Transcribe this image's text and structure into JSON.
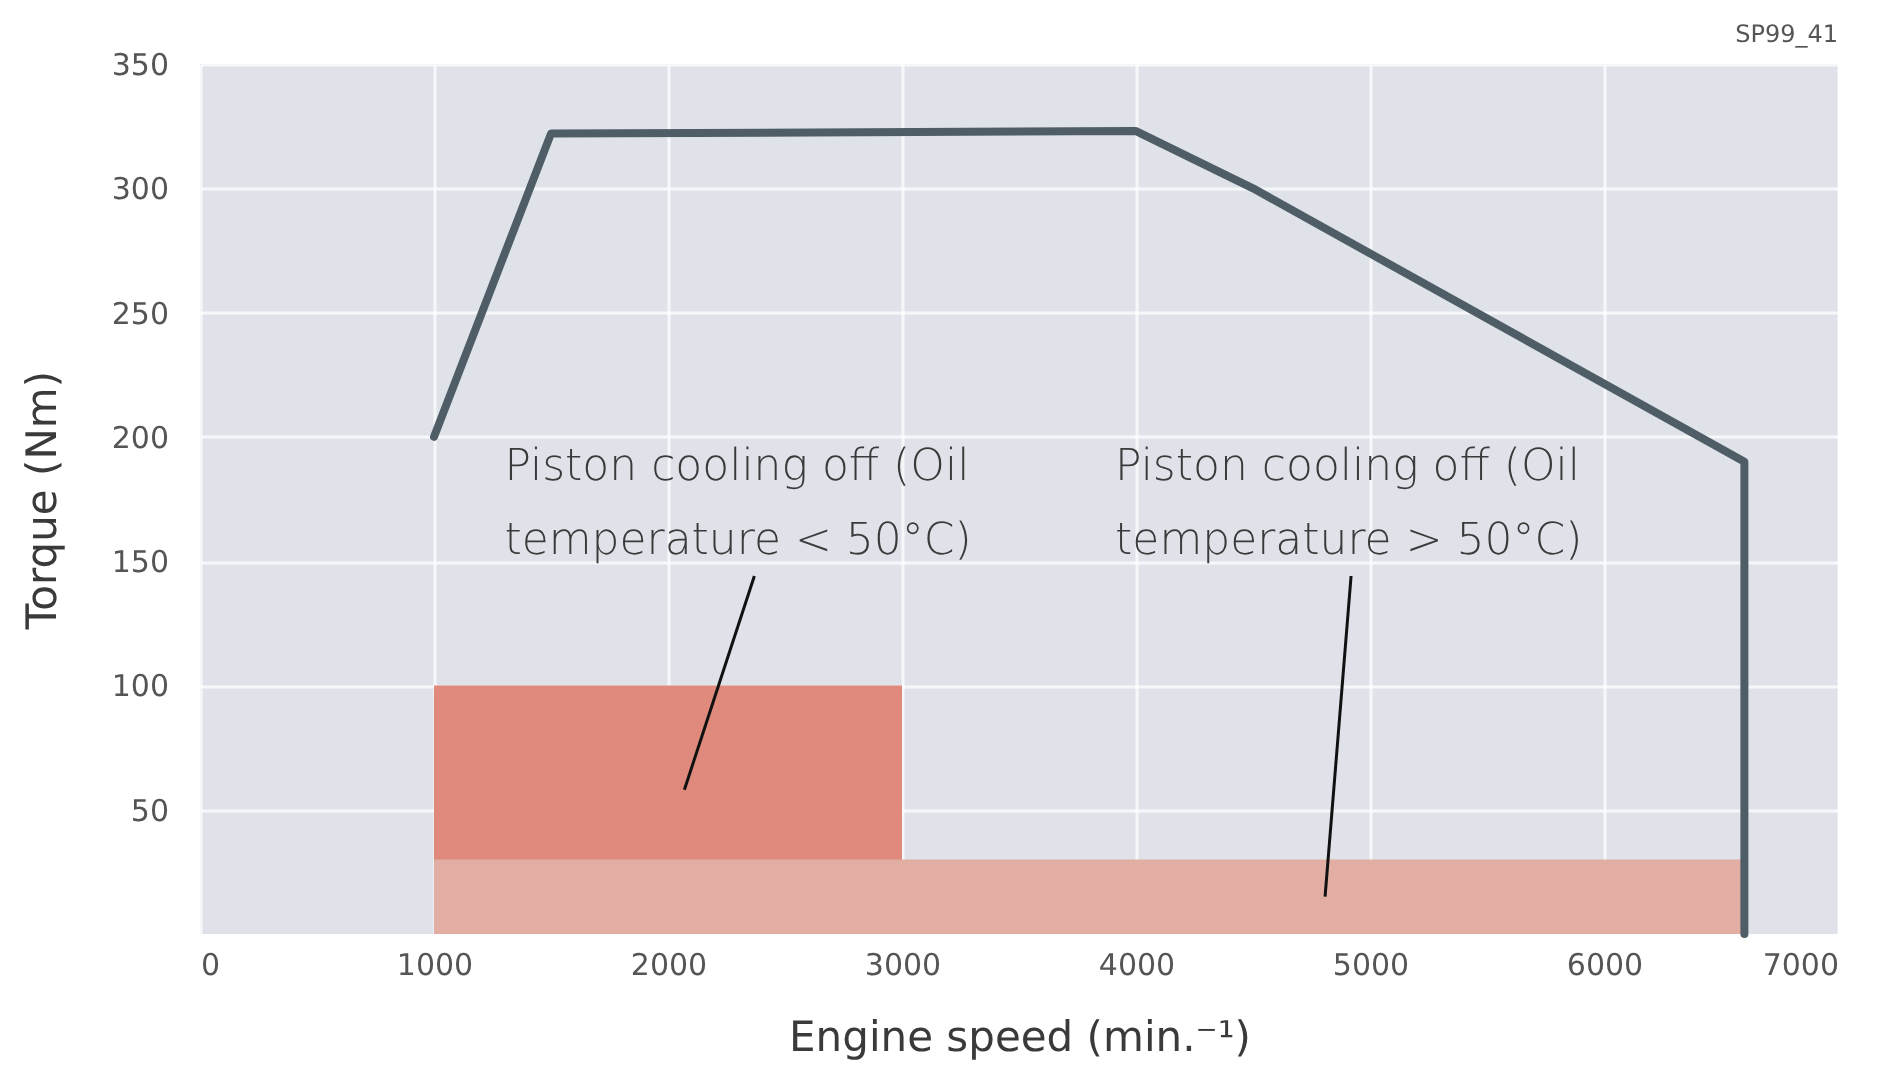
{
  "chart_data": {
    "type": "line",
    "xlabel": "Engine speed (min.⁻¹)",
    "ylabel": "Torque (Nm)",
    "series": [
      {
        "type": "area",
        "name": "Piston cooling off (Oil temperature < 50°C)",
        "color": "#df8a7c",
        "x": [
          1000,
          3000
        ],
        "values": [
          100,
          100
        ]
      },
      {
        "type": "area",
        "name": "Piston cooling off (Oil temperature > 50°C)",
        "color": "#e2aea4",
        "x": [
          1000,
          6600
        ],
        "values": [
          30,
          30
        ]
      },
      {
        "color": "#4f5d66",
        "x": [
          1000,
          1500,
          4000,
          4500,
          6600,
          6600
        ],
        "values": [
          200,
          322,
          323,
          300,
          190,
          0
        ]
      }
    ],
    "xlim": [
      0,
      7000
    ],
    "xticks": [
      0,
      1000,
      2000,
      3000,
      4000,
      5000,
      6000,
      7000
    ],
    "ylim": [
      0,
      350
    ],
    "yticks": [
      50,
      100,
      150,
      200,
      250,
      300,
      350
    ],
    "grid": true,
    "marker": "none",
    "line_style": "solid",
    "annotations": [
      "SP99_41"
    ]
  }
}
